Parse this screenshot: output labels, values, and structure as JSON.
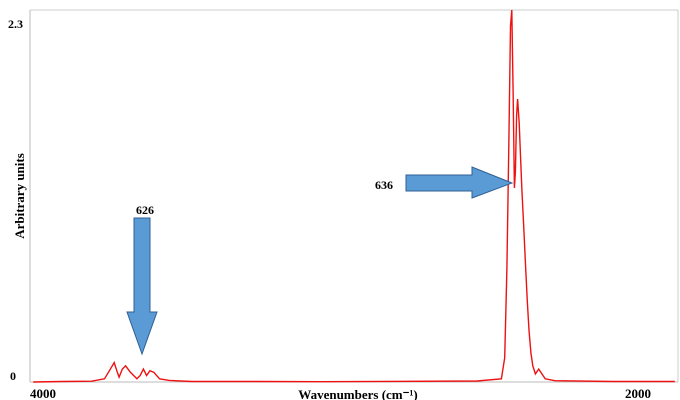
{
  "chart_data": {
    "type": "line",
    "xlabel": "Wavenumbers (cm⁻¹)",
    "ylabel": "Arbitrary units",
    "xlim": [
      4000,
      2000
    ],
    "ylim": [
      0,
      2.3
    ],
    "x_tick_labels": [
      "4000",
      "2000"
    ],
    "y_tick_labels": [
      "0",
      "2.3"
    ],
    "color": "#ee1111",
    "arrow_color": "#5b9bd5",
    "annotations": [
      {
        "text": "626",
        "direction": "down",
        "x": 3630
      },
      {
        "text": "636",
        "direction": "right",
        "x": 2380
      }
    ],
    "series": [
      {
        "values": [
          [
            3990,
            0
          ],
          [
            3900,
            0.003
          ],
          [
            3810,
            0.005
          ],
          [
            3770,
            0.02
          ],
          [
            3755,
            0.07
          ],
          [
            3740,
            0.12
          ],
          [
            3732,
            0.07
          ],
          [
            3725,
            0.03
          ],
          [
            3715,
            0.08
          ],
          [
            3705,
            0.1
          ],
          [
            3690,
            0.06
          ],
          [
            3670,
            0.02
          ],
          [
            3660,
            0.04
          ],
          [
            3650,
            0.08
          ],
          [
            3640,
            0.04
          ],
          [
            3630,
            0.07
          ],
          [
            3618,
            0.06
          ],
          [
            3600,
            0.02
          ],
          [
            3570,
            0.01
          ],
          [
            3500,
            0.003
          ],
          [
            3300,
            0.003
          ],
          [
            3100,
            0.002
          ],
          [
            2900,
            0.004
          ],
          [
            2620,
            0.006
          ],
          [
            2545,
            0.02
          ],
          [
            2535,
            0.15
          ],
          [
            2528,
            0.7
          ],
          [
            2522,
            1.5
          ],
          [
            2517,
            2.2
          ],
          [
            2513,
            2.3
          ],
          [
            2509,
            1.8
          ],
          [
            2505,
            1.2
          ],
          [
            2502,
            1.3
          ],
          [
            2498,
            1.65
          ],
          [
            2495,
            1.75
          ],
          [
            2490,
            1.6
          ],
          [
            2486,
            1.4
          ],
          [
            2482,
            1.2
          ],
          [
            2476,
            0.95
          ],
          [
            2470,
            0.7
          ],
          [
            2465,
            0.5
          ],
          [
            2460,
            0.32
          ],
          [
            2454,
            0.18
          ],
          [
            2448,
            0.1
          ],
          [
            2440,
            0.05
          ],
          [
            2430,
            0.08
          ],
          [
            2420,
            0.05
          ],
          [
            2410,
            0.02
          ],
          [
            2380,
            0.008
          ],
          [
            2200,
            0.003
          ],
          [
            2010,
            0.003
          ]
        ]
      }
    ]
  }
}
